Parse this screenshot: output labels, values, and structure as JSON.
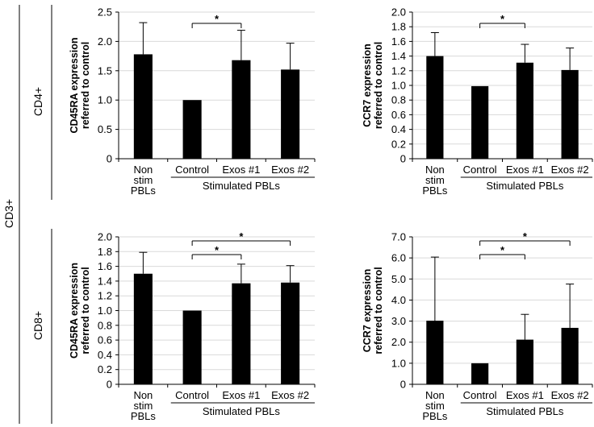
{
  "labels": {
    "cd3": "CD3+",
    "cd4": "CD4+",
    "cd8": "CD8+"
  },
  "chart_data": [
    {
      "id": "cd4-cd45ra",
      "type": "bar",
      "row": "CD4+",
      "ylabel_lines": [
        "CD45RA expression",
        "referred to control"
      ],
      "ylim": [
        0,
        2.5
      ],
      "yticks": [
        "0",
        "0.5",
        "1.0",
        "1.5",
        "2.0",
        "2.5"
      ],
      "categories": [
        [
          "Non",
          "stim",
          "PBLs"
        ],
        [
          "Control"
        ],
        [
          "Exos #1"
        ],
        [
          "Exos #2"
        ]
      ],
      "group_label": "Stimulated PBLs",
      "values": [
        1.78,
        1.0,
        1.68,
        1.52
      ],
      "errors": [
        0.54,
        0.0,
        0.51,
        0.45
      ],
      "significance": [
        {
          "from": 1,
          "to": 2,
          "label": "*"
        }
      ]
    },
    {
      "id": "cd4-ccr7",
      "type": "bar",
      "row": "CD4+",
      "ylabel_lines": [
        "CCR7 expression",
        "referred to control"
      ],
      "ylim": [
        0,
        2.0
      ],
      "yticks": [
        "0",
        "0.2",
        "0.4",
        "0.6",
        "0.8",
        "1.0",
        "1.2",
        "1.4",
        "1.6",
        "1.8",
        "2.0"
      ],
      "categories": [
        [
          "Non",
          "stim",
          "PBLs"
        ],
        [
          "Control"
        ],
        [
          "Exos #1"
        ],
        [
          "Exos #2"
        ]
      ],
      "group_label": "Stimulated PBLs",
      "values": [
        1.4,
        0.99,
        1.31,
        1.21
      ],
      "errors": [
        0.32,
        0.01,
        0.25,
        0.3
      ],
      "significance": [
        {
          "from": 1,
          "to": 2,
          "label": "*"
        }
      ]
    },
    {
      "id": "cd8-cd45ra",
      "type": "bar",
      "row": "CD8+",
      "ylabel_lines": [
        "CD45RA expression",
        "referred to control"
      ],
      "ylim": [
        0,
        2.0
      ],
      "yticks": [
        "0",
        "0.2",
        "0.4",
        "0.6",
        "0.8",
        "1.0",
        "1.2",
        "1.4",
        "1.6",
        "1.8",
        "2.0"
      ],
      "categories": [
        [
          "Non",
          "stim",
          "PBLs"
        ],
        [
          "Control"
        ],
        [
          "Exos #1"
        ],
        [
          "Exos #2"
        ]
      ],
      "group_label": "Stimulated PBLs",
      "values": [
        1.5,
        1.0,
        1.37,
        1.38
      ],
      "errors": [
        0.29,
        0.0,
        0.26,
        0.23
      ],
      "significance": [
        {
          "from": 1,
          "to": 2,
          "label": "*"
        },
        {
          "from": 1,
          "to": 3,
          "label": "*"
        }
      ]
    },
    {
      "id": "cd8-ccr7",
      "type": "bar",
      "row": "CD8+",
      "ylabel_lines": [
        "CCR7 expression",
        "referred to control"
      ],
      "ylim": [
        0,
        7.0
      ],
      "yticks": [
        "0",
        "1.0",
        "2.0",
        "3.0",
        "4.0",
        "5.0",
        "6.0",
        "7.0"
      ],
      "categories": [
        [
          "Non",
          "stim",
          "PBLs"
        ],
        [
          "Control"
        ],
        [
          "Exos #1"
        ],
        [
          "Exos #2"
        ]
      ],
      "group_label": "Stimulated PBLs",
      "values": [
        3.02,
        1.0,
        2.12,
        2.68
      ],
      "errors": [
        3.02,
        0.0,
        1.2,
        2.08
      ],
      "significance": [
        {
          "from": 1,
          "to": 2,
          "label": "*"
        },
        {
          "from": 1,
          "to": 3,
          "label": "*"
        }
      ]
    }
  ]
}
